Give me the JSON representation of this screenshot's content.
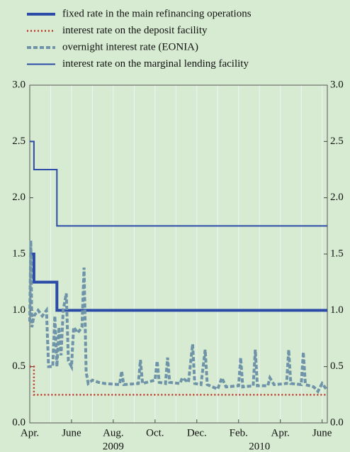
{
  "chart_data": {
    "type": "line",
    "series": [
      {
        "name": "fixed rate in the main refinancing operations",
        "color": "#2b4ba6",
        "style": "thick",
        "x": [
          0,
          0.2,
          0.2,
          1.3,
          1.3,
          14.25
        ],
        "values": [
          1.5,
          1.5,
          1.25,
          1.25,
          1.0,
          1.0
        ]
      },
      {
        "name": "interest rate on the deposit facility",
        "color": "#c0392b",
        "style": "dotted",
        "x": [
          0,
          0.2,
          0.2,
          14.25
        ],
        "values": [
          0.5,
          0.5,
          0.25,
          0.25
        ]
      },
      {
        "name": "overnight interest rate (EONIA)",
        "color": "#6f93a8",
        "style": "dashed",
        "x": [
          0,
          0.05,
          0.1,
          0.2,
          0.4,
          0.6,
          0.8,
          0.9,
          1.1,
          1.2,
          1.3,
          1.4,
          1.5,
          1.6,
          1.75,
          1.85,
          2.0,
          2.1,
          2.3,
          2.5,
          2.6,
          2.7,
          2.8,
          3.0,
          3.3,
          3.6,
          4.3,
          4.4,
          4.5,
          5.2,
          5.3,
          5.4,
          6.0,
          6.1,
          6.2,
          6.5,
          6.6,
          6.7,
          7.2,
          7.3,
          7.6,
          7.8,
          7.9,
          8.2,
          8.4,
          8.5,
          9.0,
          9.2,
          9.4,
          10.0,
          10.1,
          10.2,
          10.7,
          10.8,
          10.9,
          11.4,
          11.5,
          11.7,
          12.3,
          12.4,
          12.5,
          13.0,
          13.1,
          13.2,
          13.6,
          13.8,
          14.0,
          14.2
        ],
        "values": [
          0.9,
          1.62,
          0.85,
          0.95,
          1.0,
          0.95,
          1.0,
          0.5,
          0.5,
          0.95,
          0.5,
          0.85,
          0.6,
          1.0,
          1.15,
          0.55,
          0.5,
          0.85,
          0.8,
          0.85,
          1.38,
          0.45,
          0.35,
          0.38,
          0.36,
          0.35,
          0.34,
          0.46,
          0.34,
          0.35,
          0.56,
          0.35,
          0.38,
          0.55,
          0.36,
          0.35,
          0.58,
          0.36,
          0.35,
          0.4,
          0.36,
          0.7,
          0.35,
          0.34,
          0.65,
          0.34,
          0.3,
          0.4,
          0.32,
          0.33,
          0.58,
          0.32,
          0.33,
          0.65,
          0.33,
          0.33,
          0.4,
          0.34,
          0.35,
          0.65,
          0.35,
          0.34,
          0.63,
          0.34,
          0.32,
          0.28,
          0.35,
          0.3
        ]
      },
      {
        "name": "interest rate on the marginal lending facility",
        "color": "#2b4ba6",
        "style": "solid",
        "x": [
          0,
          0.2,
          0.2,
          1.3,
          1.3,
          14.25
        ],
        "values": [
          2.5,
          2.5,
          2.25,
          2.25,
          1.75,
          1.75
        ]
      }
    ],
    "xlim": [
      0,
      14.25
    ],
    "xticks": [
      {
        "value": 0,
        "label": "Apr."
      },
      {
        "value": 2,
        "label": "June"
      },
      {
        "value": 4,
        "label": "Aug."
      },
      {
        "value": 6,
        "label": "Oct."
      },
      {
        "value": 8,
        "label": "Dec."
      },
      {
        "value": 10,
        "label": "Feb."
      },
      {
        "value": 12,
        "label": "Apr."
      },
      {
        "value": 14,
        "label": "June"
      }
    ],
    "xgrid": [
      1,
      2,
      3,
      4,
      5,
      6,
      7,
      8,
      9,
      10,
      11,
      12,
      13,
      14
    ],
    "year_labels": [
      {
        "x": 4,
        "text": "2009"
      },
      {
        "x": 11,
        "text": "2010"
      }
    ],
    "ylim": [
      0,
      3
    ],
    "yticks": [
      {
        "value": 0,
        "label": "0.0"
      },
      0.5,
      {
        "value": 1,
        "label": "1.0"
      },
      1.5,
      {
        "value": 2,
        "label": "2.0"
      },
      2.5,
      {
        "value": 3,
        "label": "3.0"
      }
    ],
    "grid": true
  }
}
